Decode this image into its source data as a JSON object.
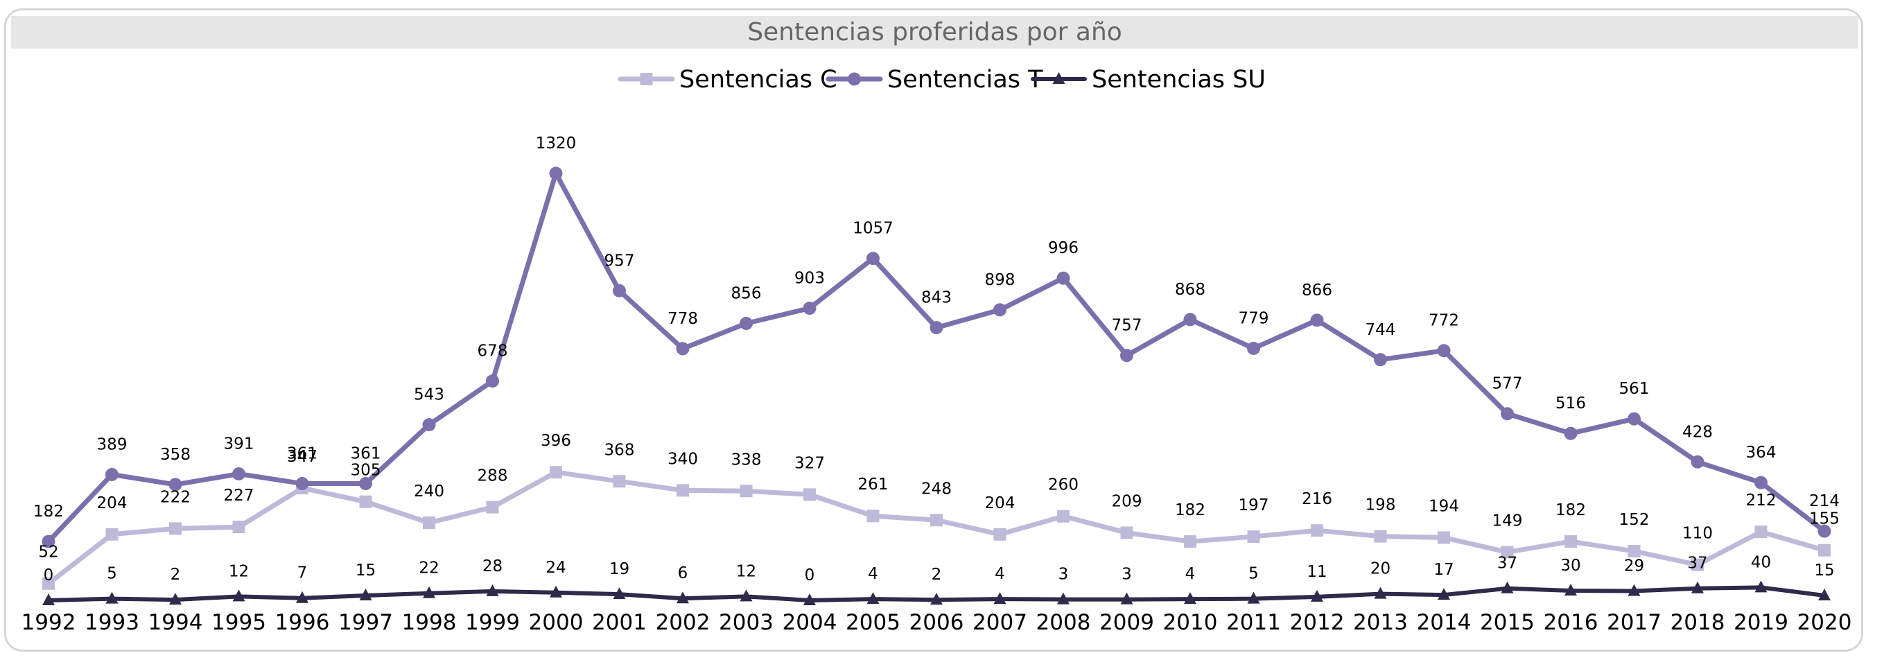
{
  "chart_data": {
    "type": "line",
    "title": "Sentencias proferidas por año",
    "xlabel": "",
    "ylabel": "",
    "ylim": [
      0,
      1400
    ],
    "legend_position": "top-center",
    "grid": false,
    "categories": [
      "1992",
      "1993",
      "1994",
      "1995",
      "1996",
      "1997",
      "1998",
      "1999",
      "2000",
      "2001",
      "2002",
      "2003",
      "2004",
      "2005",
      "2006",
      "2007",
      "2008",
      "2009",
      "2010",
      "2011",
      "2012",
      "2013",
      "2014",
      "2015",
      "2016",
      "2017",
      "2018",
      "2019",
      "2020"
    ],
    "series": [
      {
        "name": "Sentencias C",
        "color": "#bdbad9",
        "marker": "square",
        "values": [
          52,
          204,
          222,
          227,
          347,
          305,
          240,
          288,
          396,
          368,
          340,
          338,
          327,
          261,
          248,
          204,
          260,
          209,
          182,
          197,
          216,
          198,
          194,
          149,
          182,
          152,
          110,
          212,
          155
        ]
      },
      {
        "name": "Sentencias T",
        "color": "#7b70ac",
        "marker": "circle",
        "values": [
          182,
          389,
          358,
          391,
          361,
          361,
          543,
          678,
          1320,
          957,
          778,
          856,
          903,
          1057,
          843,
          898,
          996,
          757,
          868,
          779,
          866,
          744,
          772,
          577,
          516,
          561,
          428,
          364,
          214
        ]
      },
      {
        "name": "Sentencias SU",
        "color": "#2e2a4a",
        "marker": "triangle",
        "values": [
          0,
          5,
          2,
          12,
          7,
          15,
          22,
          28,
          24,
          19,
          6,
          12,
          0,
          4,
          2,
          4,
          3,
          3,
          4,
          5,
          11,
          20,
          17,
          37,
          30,
          29,
          37,
          40,
          15
        ]
      }
    ]
  }
}
